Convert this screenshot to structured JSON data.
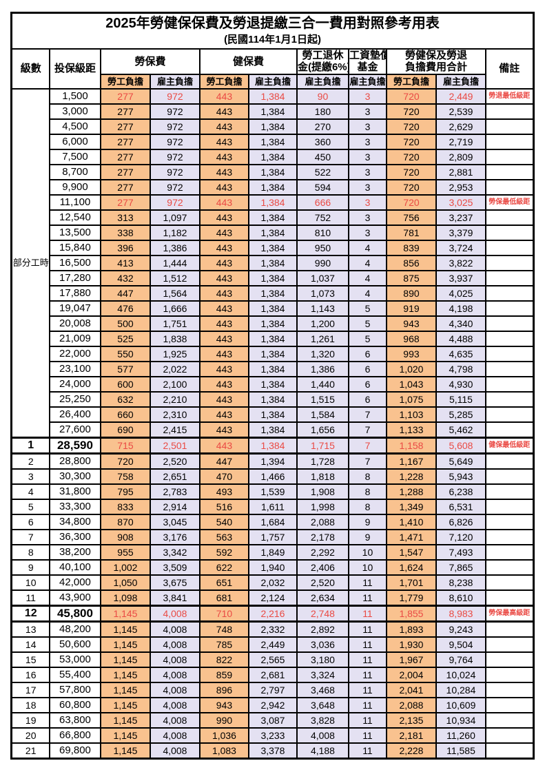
{
  "title": "2025年勞健保保費及勞退提繳三合一費用對照參考用表",
  "subtitle": "(民國114年1月1日起)",
  "colors": {
    "employee_bg": "#f9c28f",
    "employer_bg": "#e4e1f2",
    "red": "#ea4a44"
  },
  "header": {
    "level": "級數",
    "bracket": "投保級距",
    "labor_ins": "勞保費",
    "health_ins": "健保費",
    "pension_line1": "勞工退休",
    "pension_line2": "金(提繳6%)",
    "wage_fund_line1": "工資墊償",
    "wage_fund_line2": "基金",
    "total_line1": "勞健保及勞退",
    "total_line2": "負擔費用合計",
    "remark": "備註",
    "employee": "勞工負擔",
    "employer": "雇主負擔"
  },
  "part_time_label": "部分工時",
  "rows": [
    {
      "level": "",
      "bracket": "1,500",
      "values": [
        "277",
        "972",
        "443",
        "1,384",
        "90",
        "3",
        "720",
        "2,449"
      ],
      "remark": "勞退最低級距",
      "red": true,
      "em": false
    },
    {
      "level": "",
      "bracket": "3,000",
      "values": [
        "277",
        "972",
        "443",
        "1,384",
        "180",
        "3",
        "720",
        "2,539"
      ],
      "remark": "",
      "red": false,
      "em": false
    },
    {
      "level": "",
      "bracket": "4,500",
      "values": [
        "277",
        "972",
        "443",
        "1,384",
        "270",
        "3",
        "720",
        "2,629"
      ],
      "remark": "",
      "red": false,
      "em": false
    },
    {
      "level": "",
      "bracket": "6,000",
      "values": [
        "277",
        "972",
        "443",
        "1,384",
        "360",
        "3",
        "720",
        "2,719"
      ],
      "remark": "",
      "red": false,
      "em": false
    },
    {
      "level": "",
      "bracket": "7,500",
      "values": [
        "277",
        "972",
        "443",
        "1,384",
        "450",
        "3",
        "720",
        "2,809"
      ],
      "remark": "",
      "red": false,
      "em": false
    },
    {
      "level": "",
      "bracket": "8,700",
      "values": [
        "277",
        "972",
        "443",
        "1,384",
        "522",
        "3",
        "720",
        "2,881"
      ],
      "remark": "",
      "red": false,
      "em": false
    },
    {
      "level": "",
      "bracket": "9,900",
      "values": [
        "277",
        "972",
        "443",
        "1,384",
        "594",
        "3",
        "720",
        "2,953"
      ],
      "remark": "",
      "red": false,
      "em": false
    },
    {
      "level": "",
      "bracket": "11,100",
      "values": [
        "277",
        "972",
        "443",
        "1,384",
        "666",
        "3",
        "720",
        "3,025"
      ],
      "remark": "勞保最低級距",
      "red": true,
      "em": false
    },
    {
      "level": "",
      "bracket": "12,540",
      "values": [
        "313",
        "1,097",
        "443",
        "1,384",
        "752",
        "3",
        "756",
        "3,237"
      ],
      "remark": "",
      "red": false,
      "em": false
    },
    {
      "level": "",
      "bracket": "13,500",
      "values": [
        "338",
        "1,182",
        "443",
        "1,384",
        "810",
        "3",
        "781",
        "3,379"
      ],
      "remark": "",
      "red": false,
      "em": false
    },
    {
      "level": "",
      "bracket": "15,840",
      "values": [
        "396",
        "1,386",
        "443",
        "1,384",
        "950",
        "4",
        "839",
        "3,724"
      ],
      "remark": "",
      "red": false,
      "em": false
    },
    {
      "level": "",
      "bracket": "16,500",
      "values": [
        "413",
        "1,444",
        "443",
        "1,384",
        "990",
        "4",
        "856",
        "3,822"
      ],
      "remark": "",
      "red": false,
      "em": false
    },
    {
      "level": "",
      "bracket": "17,280",
      "values": [
        "432",
        "1,512",
        "443",
        "1,384",
        "1,037",
        "4",
        "875",
        "3,937"
      ],
      "remark": "",
      "red": false,
      "em": false
    },
    {
      "level": "",
      "bracket": "17,880",
      "values": [
        "447",
        "1,564",
        "443",
        "1,384",
        "1,073",
        "4",
        "890",
        "4,025"
      ],
      "remark": "",
      "red": false,
      "em": false
    },
    {
      "level": "",
      "bracket": "19,047",
      "values": [
        "476",
        "1,666",
        "443",
        "1,384",
        "1,143",
        "5",
        "919",
        "4,198"
      ],
      "remark": "",
      "red": false,
      "em": false
    },
    {
      "level": "",
      "bracket": "20,008",
      "values": [
        "500",
        "1,751",
        "443",
        "1,384",
        "1,200",
        "5",
        "943",
        "4,340"
      ],
      "remark": "",
      "red": false,
      "em": false
    },
    {
      "level": "",
      "bracket": "21,009",
      "values": [
        "525",
        "1,838",
        "443",
        "1,384",
        "1,261",
        "5",
        "968",
        "4,488"
      ],
      "remark": "",
      "red": false,
      "em": false
    },
    {
      "level": "",
      "bracket": "22,000",
      "values": [
        "550",
        "1,925",
        "443",
        "1,384",
        "1,320",
        "6",
        "993",
        "4,635"
      ],
      "remark": "",
      "red": false,
      "em": false
    },
    {
      "level": "",
      "bracket": "23,100",
      "values": [
        "577",
        "2,022",
        "443",
        "1,384",
        "1,386",
        "6",
        "1,020",
        "4,798"
      ],
      "remark": "",
      "red": false,
      "em": false
    },
    {
      "level": "",
      "bracket": "24,000",
      "values": [
        "600",
        "2,100",
        "443",
        "1,384",
        "1,440",
        "6",
        "1,043",
        "4,930"
      ],
      "remark": "",
      "red": false,
      "em": false
    },
    {
      "level": "",
      "bracket": "25,250",
      "values": [
        "632",
        "2,210",
        "443",
        "1,384",
        "1,515",
        "6",
        "1,075",
        "5,115"
      ],
      "remark": "",
      "red": false,
      "em": false
    },
    {
      "level": "",
      "bracket": "26,400",
      "values": [
        "660",
        "2,310",
        "443",
        "1,384",
        "1,584",
        "7",
        "1,103",
        "5,285"
      ],
      "remark": "",
      "red": false,
      "em": false
    },
    {
      "level": "",
      "bracket": "27,600",
      "values": [
        "690",
        "2,415",
        "443",
        "1,384",
        "1,656",
        "7",
        "1,133",
        "5,462"
      ],
      "remark": "",
      "red": false,
      "em": false
    },
    {
      "level": "1",
      "bracket": "28,590",
      "values": [
        "715",
        "2,501",
        "443",
        "1,384",
        "1,715",
        "7",
        "1,158",
        "5,608"
      ],
      "remark": "健保最低級距",
      "red": true,
      "em": true
    },
    {
      "level": "2",
      "bracket": "28,800",
      "values": [
        "720",
        "2,520",
        "447",
        "1,394",
        "1,728",
        "7",
        "1,167",
        "5,649"
      ],
      "remark": "",
      "red": false,
      "em": false
    },
    {
      "level": "3",
      "bracket": "30,300",
      "values": [
        "758",
        "2,651",
        "470",
        "1,466",
        "1,818",
        "8",
        "1,228",
        "5,943"
      ],
      "remark": "",
      "red": false,
      "em": false
    },
    {
      "level": "4",
      "bracket": "31,800",
      "values": [
        "795",
        "2,783",
        "493",
        "1,539",
        "1,908",
        "8",
        "1,288",
        "6,238"
      ],
      "remark": "",
      "red": false,
      "em": false
    },
    {
      "level": "5",
      "bracket": "33,300",
      "values": [
        "833",
        "2,914",
        "516",
        "1,611",
        "1,998",
        "8",
        "1,349",
        "6,531"
      ],
      "remark": "",
      "red": false,
      "em": false
    },
    {
      "level": "6",
      "bracket": "34,800",
      "values": [
        "870",
        "3,045",
        "540",
        "1,684",
        "2,088",
        "9",
        "1,410",
        "6,826"
      ],
      "remark": "",
      "red": false,
      "em": false
    },
    {
      "level": "7",
      "bracket": "36,300",
      "values": [
        "908",
        "3,176",
        "563",
        "1,757",
        "2,178",
        "9",
        "1,471",
        "7,120"
      ],
      "remark": "",
      "red": false,
      "em": false
    },
    {
      "level": "8",
      "bracket": "38,200",
      "values": [
        "955",
        "3,342",
        "592",
        "1,849",
        "2,292",
        "10",
        "1,547",
        "7,493"
      ],
      "remark": "",
      "red": false,
      "em": false
    },
    {
      "level": "9",
      "bracket": "40,100",
      "values": [
        "1,002",
        "3,509",
        "622",
        "1,940",
        "2,406",
        "10",
        "1,624",
        "7,865"
      ],
      "remark": "",
      "red": false,
      "em": false
    },
    {
      "level": "10",
      "bracket": "42,000",
      "values": [
        "1,050",
        "3,675",
        "651",
        "2,032",
        "2,520",
        "11",
        "1,701",
        "8,238"
      ],
      "remark": "",
      "red": false,
      "em": false
    },
    {
      "level": "11",
      "bracket": "43,900",
      "values": [
        "1,098",
        "3,841",
        "681",
        "2,124",
        "2,634",
        "11",
        "1,779",
        "8,610"
      ],
      "remark": "",
      "red": false,
      "em": false
    },
    {
      "level": "12",
      "bracket": "45,800",
      "values": [
        "1,145",
        "4,008",
        "710",
        "2,216",
        "2,748",
        "11",
        "1,855",
        "8,983"
      ],
      "remark": "勞保最高級距",
      "red": true,
      "em": true
    },
    {
      "level": "13",
      "bracket": "48,200",
      "values": [
        "1,145",
        "4,008",
        "748",
        "2,332",
        "2,892",
        "11",
        "1,893",
        "9,243"
      ],
      "remark": "",
      "red": false,
      "em": false
    },
    {
      "level": "14",
      "bracket": "50,600",
      "values": [
        "1,145",
        "4,008",
        "785",
        "2,449",
        "3,036",
        "11",
        "1,930",
        "9,504"
      ],
      "remark": "",
      "red": false,
      "em": false
    },
    {
      "level": "15",
      "bracket": "53,000",
      "values": [
        "1,145",
        "4,008",
        "822",
        "2,565",
        "3,180",
        "11",
        "1,967",
        "9,764"
      ],
      "remark": "",
      "red": false,
      "em": false
    },
    {
      "level": "16",
      "bracket": "55,400",
      "values": [
        "1,145",
        "4,008",
        "859",
        "2,681",
        "3,324",
        "11",
        "2,004",
        "10,024"
      ],
      "remark": "",
      "red": false,
      "em": false
    },
    {
      "level": "17",
      "bracket": "57,800",
      "values": [
        "1,145",
        "4,008",
        "896",
        "2,797",
        "3,468",
        "11",
        "2,041",
        "10,284"
      ],
      "remark": "",
      "red": false,
      "em": false
    },
    {
      "level": "18",
      "bracket": "60,800",
      "values": [
        "1,145",
        "4,008",
        "943",
        "2,942",
        "3,648",
        "11",
        "2,088",
        "10,609"
      ],
      "remark": "",
      "red": false,
      "em": false
    },
    {
      "level": "19",
      "bracket": "63,800",
      "values": [
        "1,145",
        "4,008",
        "990",
        "3,087",
        "3,828",
        "11",
        "2,135",
        "10,934"
      ],
      "remark": "",
      "red": false,
      "em": false
    },
    {
      "level": "20",
      "bracket": "66,800",
      "values": [
        "1,145",
        "4,008",
        "1,036",
        "3,233",
        "4,008",
        "11",
        "2,181",
        "11,260"
      ],
      "remark": "",
      "red": false,
      "em": false
    },
    {
      "level": "21",
      "bracket": "69,800",
      "values": [
        "1,145",
        "4,008",
        "1,083",
        "3,378",
        "4,188",
        "11",
        "2,228",
        "11,585"
      ],
      "remark": "",
      "red": false,
      "em": false
    }
  ]
}
